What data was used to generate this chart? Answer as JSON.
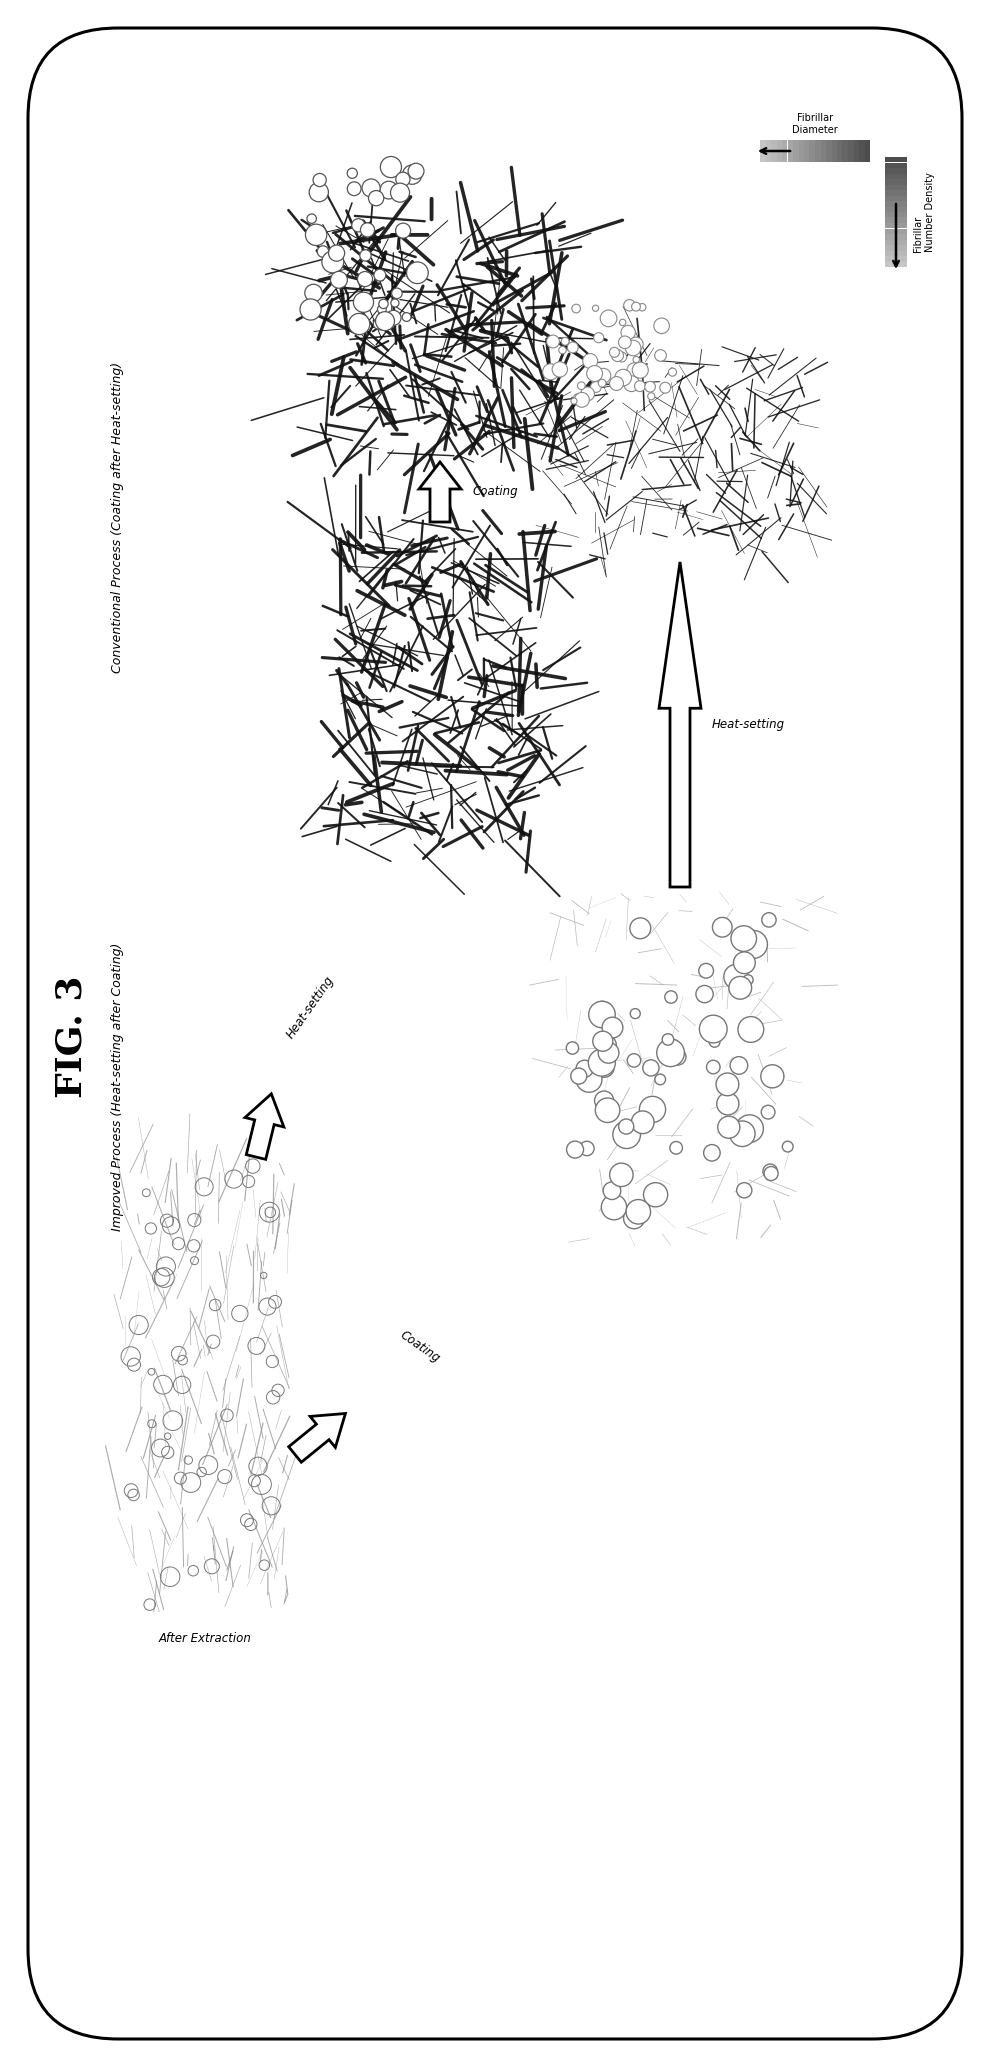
{
  "title": "FIG. 3",
  "background": "#ffffff",
  "border_color": "#000000",
  "fig_width": 9.9,
  "fig_height": 20.67,
  "dpi": 100,
  "conventional_label": "Conventional Process (Coating after Heat-setting)",
  "improved_label": "Improved Process (Heat-setting after Coating)",
  "after_extraction_label": "After Extraction",
  "heat_setting_label": "Heat-setting",
  "coating_label": "Coating",
  "heat_setting_label2": "Heat-setting",
  "coating_label2": "Coating",
  "fibrillar_diameter_label": "Fibrillar\nDiameter",
  "fibrillar_number_density_label": "Fibrillar\nNumber Density"
}
